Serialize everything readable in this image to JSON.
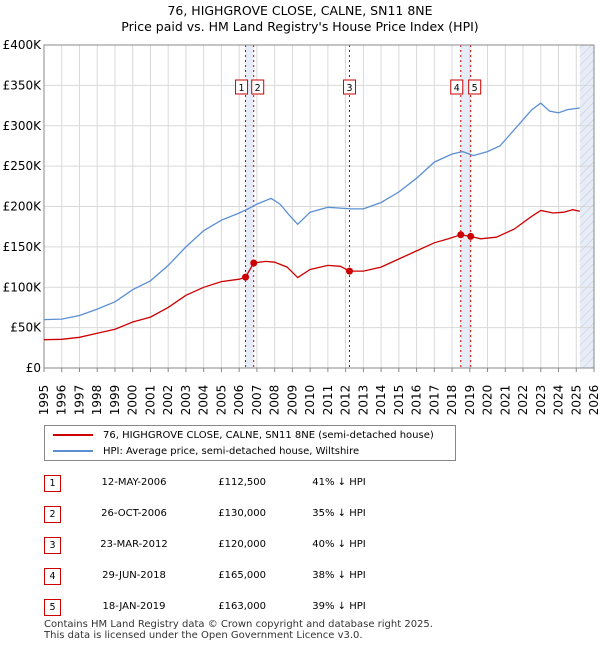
{
  "title_line1": "76, HIGHGROVE CLOSE, CALNE, SN11 8NE",
  "title_line2": "Price paid vs. HM Land Registry's House Price Index (HPI)",
  "chart_data": {
    "type": "line",
    "title": "76, HIGHGROVE CLOSE, CALNE, SN11 8NE — Price paid vs. HM Land Registry's House Price Index (HPI)",
    "xlabel": "",
    "ylabel": "",
    "xlim": [
      1995,
      2026
    ],
    "ylim": [
      0,
      400000
    ],
    "y_ticks": [
      {
        "value": 0,
        "label": "£0"
      },
      {
        "value": 50000,
        "label": "£50K"
      },
      {
        "value": 100000,
        "label": "£100K"
      },
      {
        "value": 150000,
        "label": "£150K"
      },
      {
        "value": 200000,
        "label": "£200K"
      },
      {
        "value": 250000,
        "label": "£250K"
      },
      {
        "value": 300000,
        "label": "£300K"
      },
      {
        "value": 350000,
        "label": "£350K"
      },
      {
        "value": 400000,
        "label": "£400K"
      }
    ],
    "x_ticks": [
      "1995",
      "1996",
      "1997",
      "1998",
      "1999",
      "2000",
      "2001",
      "2002",
      "2003",
      "2004",
      "2005",
      "2006",
      "2007",
      "2008",
      "2009",
      "2010",
      "2011",
      "2012",
      "2013",
      "2014",
      "2015",
      "2016",
      "2017",
      "2018",
      "2019",
      "2020",
      "2021",
      "2022",
      "2023",
      "2024",
      "2025",
      "2026"
    ],
    "shaded_spans": [
      [
        2006.36,
        2006.82
      ],
      [
        2012.22,
        2012.22
      ],
      [
        2018.49,
        2019.05
      ],
      [
        2025.2,
        2026
      ]
    ],
    "series": [
      {
        "name": "76, HIGHGROVE CLOSE, CALNE, SN11 8NE (semi-detached house)",
        "color": "#cc0000",
        "points": [
          [
            1995.0,
            35000
          ],
          [
            1996.0,
            35500
          ],
          [
            1997.0,
            38000
          ],
          [
            1998.0,
            43000
          ],
          [
            1999.0,
            48000
          ],
          [
            2000.0,
            57000
          ],
          [
            2001.0,
            63000
          ],
          [
            2002.0,
            75000
          ],
          [
            2003.0,
            90000
          ],
          [
            2004.0,
            100000
          ],
          [
            2005.0,
            107000
          ],
          [
            2006.0,
            110000
          ],
          [
            2006.36,
            112500
          ],
          [
            2006.82,
            130000
          ],
          [
            2007.5,
            132000
          ],
          [
            2008.0,
            131000
          ],
          [
            2008.7,
            125000
          ],
          [
            2009.3,
            112000
          ],
          [
            2010.0,
            122000
          ],
          [
            2011.0,
            127000
          ],
          [
            2011.7,
            126000
          ],
          [
            2012.22,
            120000
          ],
          [
            2013.0,
            120000
          ],
          [
            2014.0,
            125000
          ],
          [
            2015.0,
            135000
          ],
          [
            2016.0,
            145000
          ],
          [
            2017.0,
            155000
          ],
          [
            2017.8,
            160000
          ],
          [
            2018.49,
            165000
          ],
          [
            2019.05,
            163000
          ],
          [
            2019.6,
            160000
          ],
          [
            2020.5,
            162000
          ],
          [
            2021.5,
            172000
          ],
          [
            2022.5,
            188000
          ],
          [
            2023.0,
            195000
          ],
          [
            2023.7,
            192000
          ],
          [
            2024.3,
            193000
          ],
          [
            2024.8,
            196000
          ],
          [
            2025.2,
            194000
          ]
        ]
      },
      {
        "name": "HPI: Average price, semi-detached house, Wiltshire",
        "color": "#5b8fd4",
        "points": [
          [
            1995.0,
            60000
          ],
          [
            1996.0,
            60500
          ],
          [
            1997.0,
            65000
          ],
          [
            1998.0,
            73000
          ],
          [
            1999.0,
            82000
          ],
          [
            2000.0,
            97000
          ],
          [
            2001.0,
            108000
          ],
          [
            2002.0,
            127000
          ],
          [
            2003.0,
            150000
          ],
          [
            2004.0,
            170000
          ],
          [
            2005.0,
            183000
          ],
          [
            2006.0,
            192000
          ],
          [
            2006.5,
            197000
          ],
          [
            2007.0,
            203000
          ],
          [
            2007.8,
            210000
          ],
          [
            2008.3,
            203000
          ],
          [
            2008.8,
            190000
          ],
          [
            2009.3,
            178000
          ],
          [
            2010.0,
            193000
          ],
          [
            2011.0,
            199000
          ],
          [
            2011.7,
            198000
          ],
          [
            2012.3,
            197000
          ],
          [
            2013.0,
            197000
          ],
          [
            2014.0,
            205000
          ],
          [
            2015.0,
            218000
          ],
          [
            2016.0,
            235000
          ],
          [
            2017.0,
            255000
          ],
          [
            2018.0,
            265000
          ],
          [
            2018.6,
            268000
          ],
          [
            2019.2,
            263000
          ],
          [
            2020.0,
            268000
          ],
          [
            2020.7,
            275000
          ],
          [
            2021.5,
            295000
          ],
          [
            2022.5,
            320000
          ],
          [
            2023.0,
            328000
          ],
          [
            2023.5,
            318000
          ],
          [
            2024.0,
            316000
          ],
          [
            2024.5,
            320000
          ],
          [
            2025.2,
            322000
          ]
        ]
      }
    ],
    "sales": [
      {
        "id": "1",
        "year": 2006.36,
        "price": 112500,
        "date": "12-MAY-2006",
        "price_label": "£112,500",
        "hpi": "41% ↓ HPI"
      },
      {
        "id": "2",
        "year": 2006.82,
        "price": 130000,
        "date": "26-OCT-2006",
        "price_label": "£130,000",
        "hpi": "35% ↓ HPI"
      },
      {
        "id": "3",
        "year": 2012.22,
        "price": 120000,
        "date": "23-MAR-2012",
        "price_label": "£120,000",
        "hpi": "40% ↓ HPI"
      },
      {
        "id": "4",
        "year": 2018.49,
        "price": 165000,
        "date": "29-JUN-2018",
        "price_label": "£165,000",
        "hpi": "38% ↓ HPI"
      },
      {
        "id": "5",
        "year": 2019.05,
        "price": 163000,
        "date": "18-JAN-2019",
        "price_label": "£163,000",
        "hpi": "39% ↓ HPI"
      }
    ]
  },
  "legend": {
    "property_label": "76, HIGHGROVE CLOSE, CALNE, SN11 8NE (semi-detached house)",
    "hpi_label": "HPI: Average price, semi-detached house, Wiltshire",
    "property_color": "#cc0000",
    "hpi_color": "#5b8fd4"
  },
  "footer": {
    "line1": "Contains HM Land Registry data © Crown copyright and database right 2025.",
    "line2": "This data is licensed under the Open Government Licence v3.0."
  }
}
